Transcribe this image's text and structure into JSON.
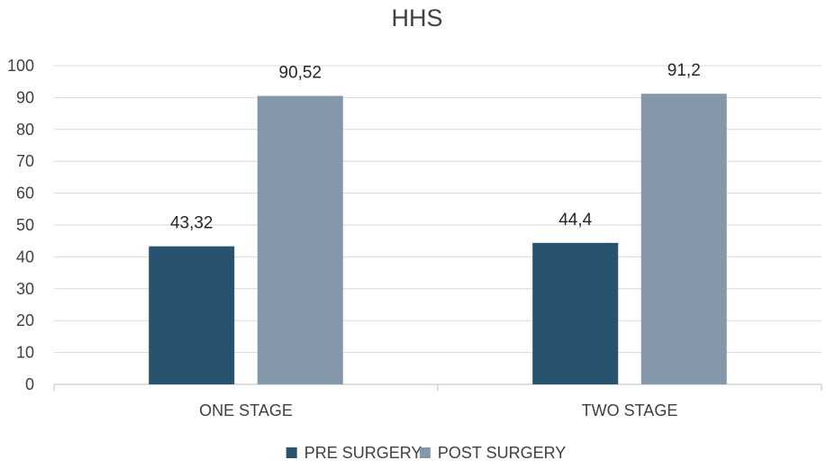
{
  "chart_data": {
    "type": "bar",
    "title": "HHS",
    "categories": [
      "ONE STAGE",
      "TWO STAGE"
    ],
    "series": [
      {
        "name": "PRE SURGERY",
        "values": [
          43.32,
          44.4
        ],
        "labels": [
          "43,32",
          "44,4"
        ],
        "color": "#27536f"
      },
      {
        "name": "POST SURGERY",
        "values": [
          90.52,
          91.2
        ],
        "labels": [
          "90,52",
          "91,2"
        ],
        "color": "#8598aa"
      }
    ],
    "ylim": [
      0,
      100
    ],
    "yticks": [
      0,
      10,
      20,
      30,
      40,
      50,
      60,
      70,
      80,
      90,
      100
    ],
    "grid": true,
    "legend": "bottom"
  }
}
